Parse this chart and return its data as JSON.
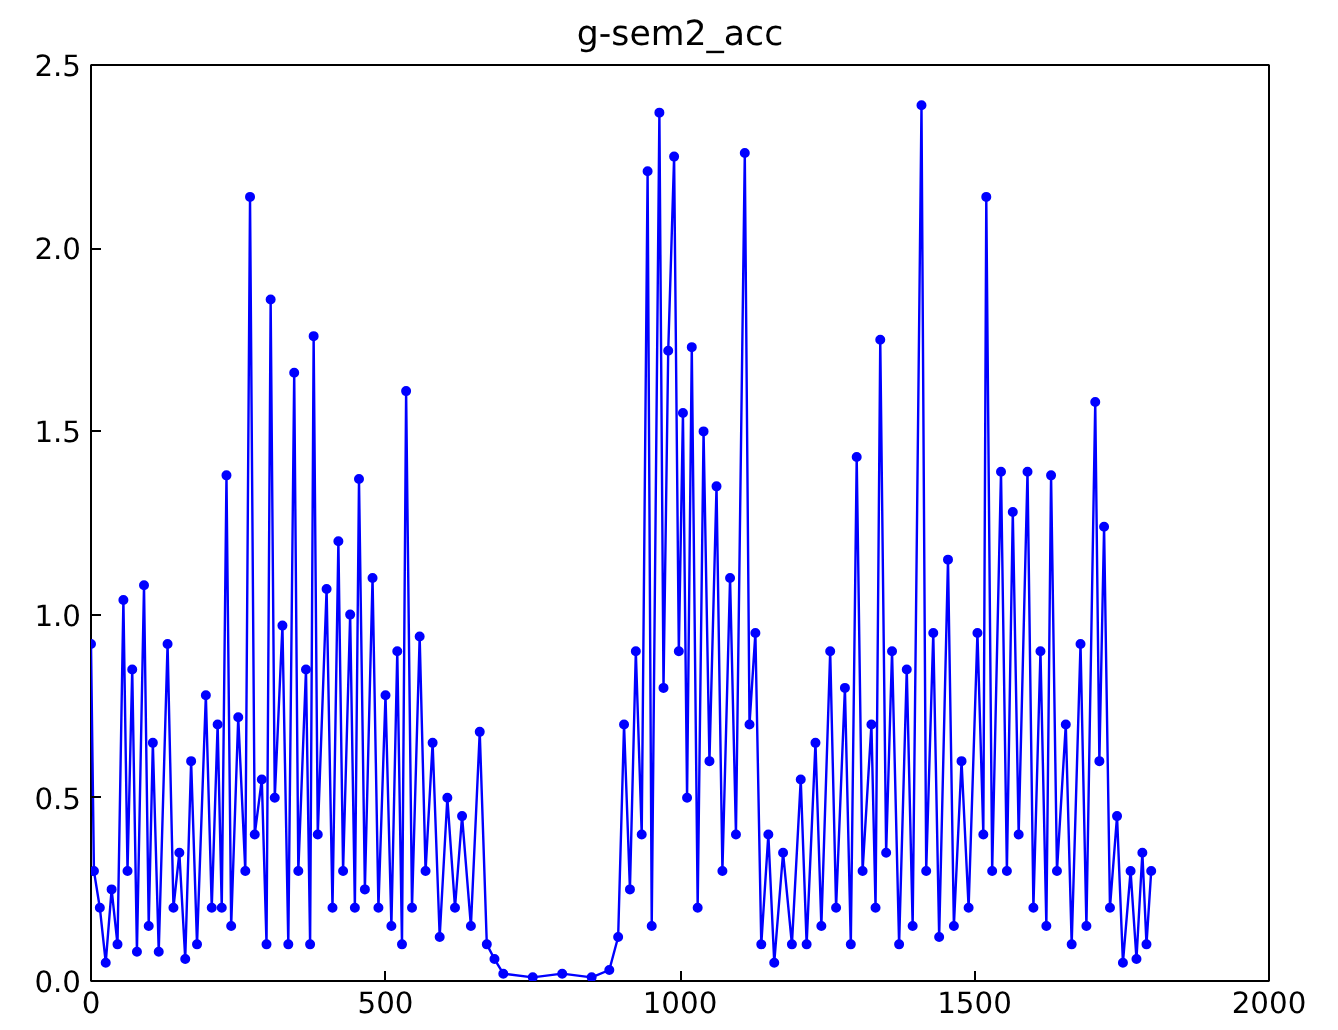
{
  "chart_data": {
    "type": "line",
    "title": "g-sem2_acc",
    "x": [
      0,
      5,
      15,
      25,
      35,
      45,
      55,
      62,
      70,
      78,
      90,
      98,
      105,
      115,
      130,
      140,
      150,
      160,
      170,
      180,
      195,
      205,
      215,
      222,
      230,
      238,
      250,
      262,
      270,
      278,
      290,
      298,
      305,
      312,
      325,
      335,
      345,
      352,
      365,
      372,
      378,
      385,
      400,
      410,
      420,
      428,
      440,
      448,
      455,
      465,
      478,
      488,
      500,
      510,
      520,
      528,
      535,
      545,
      558,
      568,
      580,
      592,
      605,
      618,
      630,
      645,
      660,
      672,
      685,
      700,
      750,
      800,
      850,
      880,
      895,
      905,
      915,
      925,
      935,
      945,
      952,
      965,
      972,
      980,
      990,
      998,
      1005,
      1012,
      1020,
      1030,
      1040,
      1050,
      1062,
      1072,
      1085,
      1095,
      1110,
      1118,
      1128,
      1138,
      1150,
      1160,
      1175,
      1190,
      1205,
      1215,
      1230,
      1240,
      1255,
      1265,
      1280,
      1290,
      1300,
      1310,
      1325,
      1332,
      1340,
      1350,
      1360,
      1372,
      1385,
      1395,
      1410,
      1418,
      1430,
      1440,
      1455,
      1465,
      1478,
      1490,
      1505,
      1515,
      1520,
      1530,
      1545,
      1555,
      1565,
      1575,
      1590,
      1600,
      1612,
      1622,
      1630,
      1640,
      1655,
      1665,
      1680,
      1690,
      1705,
      1712,
      1720,
      1730,
      1742,
      1752,
      1765,
      1775,
      1785,
      1792,
      1800
    ],
    "series": [
      {
        "color": "#0000ff",
        "values": [
          0.92,
          0.3,
          0.2,
          0.05,
          0.25,
          0.1,
          1.04,
          0.3,
          0.85,
          0.08,
          1.08,
          0.15,
          0.65,
          0.08,
          0.92,
          0.2,
          0.35,
          0.06,
          0.6,
          0.1,
          0.78,
          0.2,
          0.7,
          0.2,
          1.38,
          0.15,
          0.72,
          0.3,
          2.14,
          0.4,
          0.55,
          0.1,
          1.86,
          0.5,
          0.97,
          0.1,
          1.66,
          0.3,
          0.85,
          0.1,
          1.76,
          0.4,
          1.07,
          0.2,
          1.2,
          0.3,
          1.0,
          0.2,
          1.37,
          0.25,
          1.1,
          0.2,
          0.78,
          0.15,
          0.9,
          0.1,
          1.61,
          0.2,
          0.94,
          0.3,
          0.65,
          0.12,
          0.5,
          0.2,
          0.45,
          0.15,
          0.68,
          0.1,
          0.06,
          0.02,
          0.01,
          0.02,
          0.01,
          0.03,
          0.12,
          0.7,
          0.25,
          0.9,
          0.4,
          2.21,
          0.15,
          2.37,
          0.8,
          1.72,
          2.25,
          0.9,
          1.55,
          0.5,
          1.73,
          0.2,
          1.5,
          0.6,
          1.35,
          0.3,
          1.1,
          0.4,
          2.26,
          0.7,
          0.95,
          0.1,
          0.4,
          0.05,
          0.35,
          0.1,
          0.55,
          0.1,
          0.65,
          0.15,
          0.9,
          0.2,
          0.8,
          0.1,
          1.43,
          0.3,
          0.7,
          0.2,
          1.75,
          0.35,
          0.9,
          0.1,
          0.85,
          0.15,
          2.39,
          0.3,
          0.95,
          0.12,
          1.15,
          0.15,
          0.6,
          0.2,
          0.95,
          0.4,
          2.14,
          0.3,
          1.39,
          0.3,
          1.28,
          0.4,
          1.39,
          0.2,
          0.9,
          0.15,
          1.38,
          0.3,
          0.7,
          0.1,
          0.92,
          0.15,
          1.58,
          0.6,
          1.24,
          0.2,
          0.45,
          0.05,
          0.3,
          0.06,
          0.35,
          0.1,
          0.3
        ]
      }
    ],
    "xlim": [
      0,
      2000
    ],
    "xticks": [
      0,
      500,
      1000,
      1500,
      2000
    ],
    "ylim": [
      0,
      2.5
    ],
    "yticks": [
      {
        "value": 0,
        "label": "0.0"
      },
      {
        "value": 0.5,
        "label": "0.5"
      },
      {
        "value": 1,
        "label": "1.0"
      },
      {
        "value": 1.5,
        "label": "1.5"
      },
      {
        "value": 2,
        "label": "2.0"
      },
      {
        "value": 2.5,
        "label": "2.5"
      }
    ],
    "marker": "circle",
    "line_style": "solid",
    "grid": false
  }
}
